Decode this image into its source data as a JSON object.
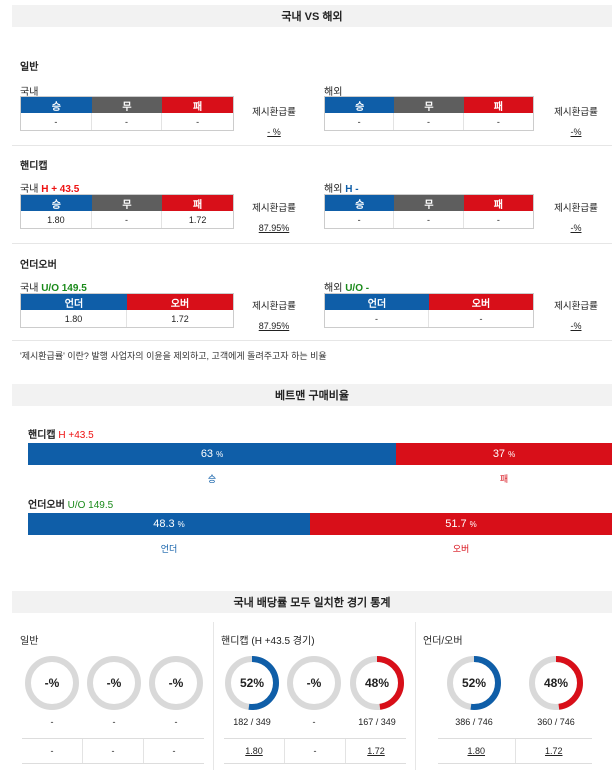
{
  "sections": {
    "domestic_vs_overseas": "국내 VS 해외",
    "betman_ratio": "베트맨 구매비율",
    "stats": "국내 배당률 모두 일치한 경기 통계"
  },
  "general": {
    "title": "일반",
    "domestic": {
      "label": "국내",
      "headers": [
        "승",
        "무",
        "패"
      ],
      "values": [
        "-",
        "-",
        "-"
      ],
      "refund_label": "제시환급률",
      "refund_value": "- %"
    },
    "overseas": {
      "label": "해외",
      "headers": [
        "승",
        "무",
        "패"
      ],
      "values": [
        "-",
        "-",
        "-"
      ],
      "refund_label": "제시환급률",
      "refund_value": "-%"
    }
  },
  "handicap": {
    "title": "핸디캡",
    "domestic": {
      "label": "국내",
      "line": "H + 43.5",
      "headers": [
        "승",
        "무",
        "패"
      ],
      "values": [
        "1.80",
        "-",
        "1.72"
      ],
      "refund_label": "제시환급률",
      "refund_value": "87.95%"
    },
    "overseas": {
      "label": "해외",
      "line": "H -",
      "headers": [
        "승",
        "무",
        "패"
      ],
      "values": [
        "-",
        "-",
        "-"
      ],
      "refund_label": "제시환급률",
      "refund_value": "-%"
    }
  },
  "underover": {
    "title": "언더오버",
    "domestic": {
      "label": "국내",
      "line": "U/O 149.5",
      "headers": [
        "언더",
        "오버"
      ],
      "values": [
        "1.80",
        "1.72"
      ],
      "refund_label": "제시환급률",
      "refund_value": "87.95%"
    },
    "overseas": {
      "label": "해외",
      "line": "U/O -",
      "headers": [
        "언더",
        "오버"
      ],
      "values": [
        "-",
        "-"
      ],
      "refund_label": "제시환급률",
      "refund_value": "-%"
    }
  },
  "note": "'제시환급률' 이란? 발행 사업자의 이윤을 제외하고, 고객에게 돌려주고자 하는 비율",
  "betman": {
    "handicap": {
      "label": "핸디캡",
      "line": "H +43.5",
      "left_pct": 63,
      "right_pct": 37,
      "left_text": "63",
      "right_text": "37",
      "unit": "%",
      "left_caption": "승",
      "right_caption": "패"
    },
    "underover": {
      "label": "언더오버",
      "line": "U/O 149.5",
      "left_pct": 48.3,
      "right_pct": 51.7,
      "left_text": "48.3",
      "right_text": "51.7",
      "unit": "%",
      "left_caption": "언더",
      "right_caption": "오버"
    }
  },
  "stats": {
    "general": {
      "title": "일반",
      "donuts": [
        {
          "text": "-%",
          "pct": 0,
          "color": "#d9d9d9",
          "caption": "-"
        },
        {
          "text": "-%",
          "pct": 0,
          "color": "#d9d9d9",
          "caption": "-"
        },
        {
          "text": "-%",
          "pct": 0,
          "color": "#d9d9d9",
          "caption": "-"
        }
      ],
      "odds": [
        "-",
        "-",
        "-"
      ]
    },
    "handicap": {
      "title": "핸디캡 (H +43.5 경기)",
      "donuts": [
        {
          "text": "52%",
          "pct": 52,
          "color": "#0f5ea8",
          "caption": "182 / 349"
        },
        {
          "text": "-%",
          "pct": 0,
          "color": "#d9d9d9",
          "caption": "-"
        },
        {
          "text": "48%",
          "pct": 48,
          "color": "#d80f19",
          "caption": "167 / 349"
        }
      ],
      "odds": [
        "1.80",
        "-",
        "1.72"
      ]
    },
    "underover": {
      "title": "언더/오버",
      "donuts": [
        {
          "text": "52%",
          "pct": 52,
          "color": "#0f5ea8",
          "caption": "386 / 746"
        },
        {
          "text": "48%",
          "pct": 48,
          "color": "#d80f19",
          "caption": "360 / 746"
        }
      ],
      "odds": [
        "1.80",
        "1.72"
      ]
    }
  },
  "colors": {
    "blue": "#0f5ea8",
    "red": "#d80f19",
    "gray": "#5e5e5e",
    "ring_gray": "#d9d9d9"
  }
}
